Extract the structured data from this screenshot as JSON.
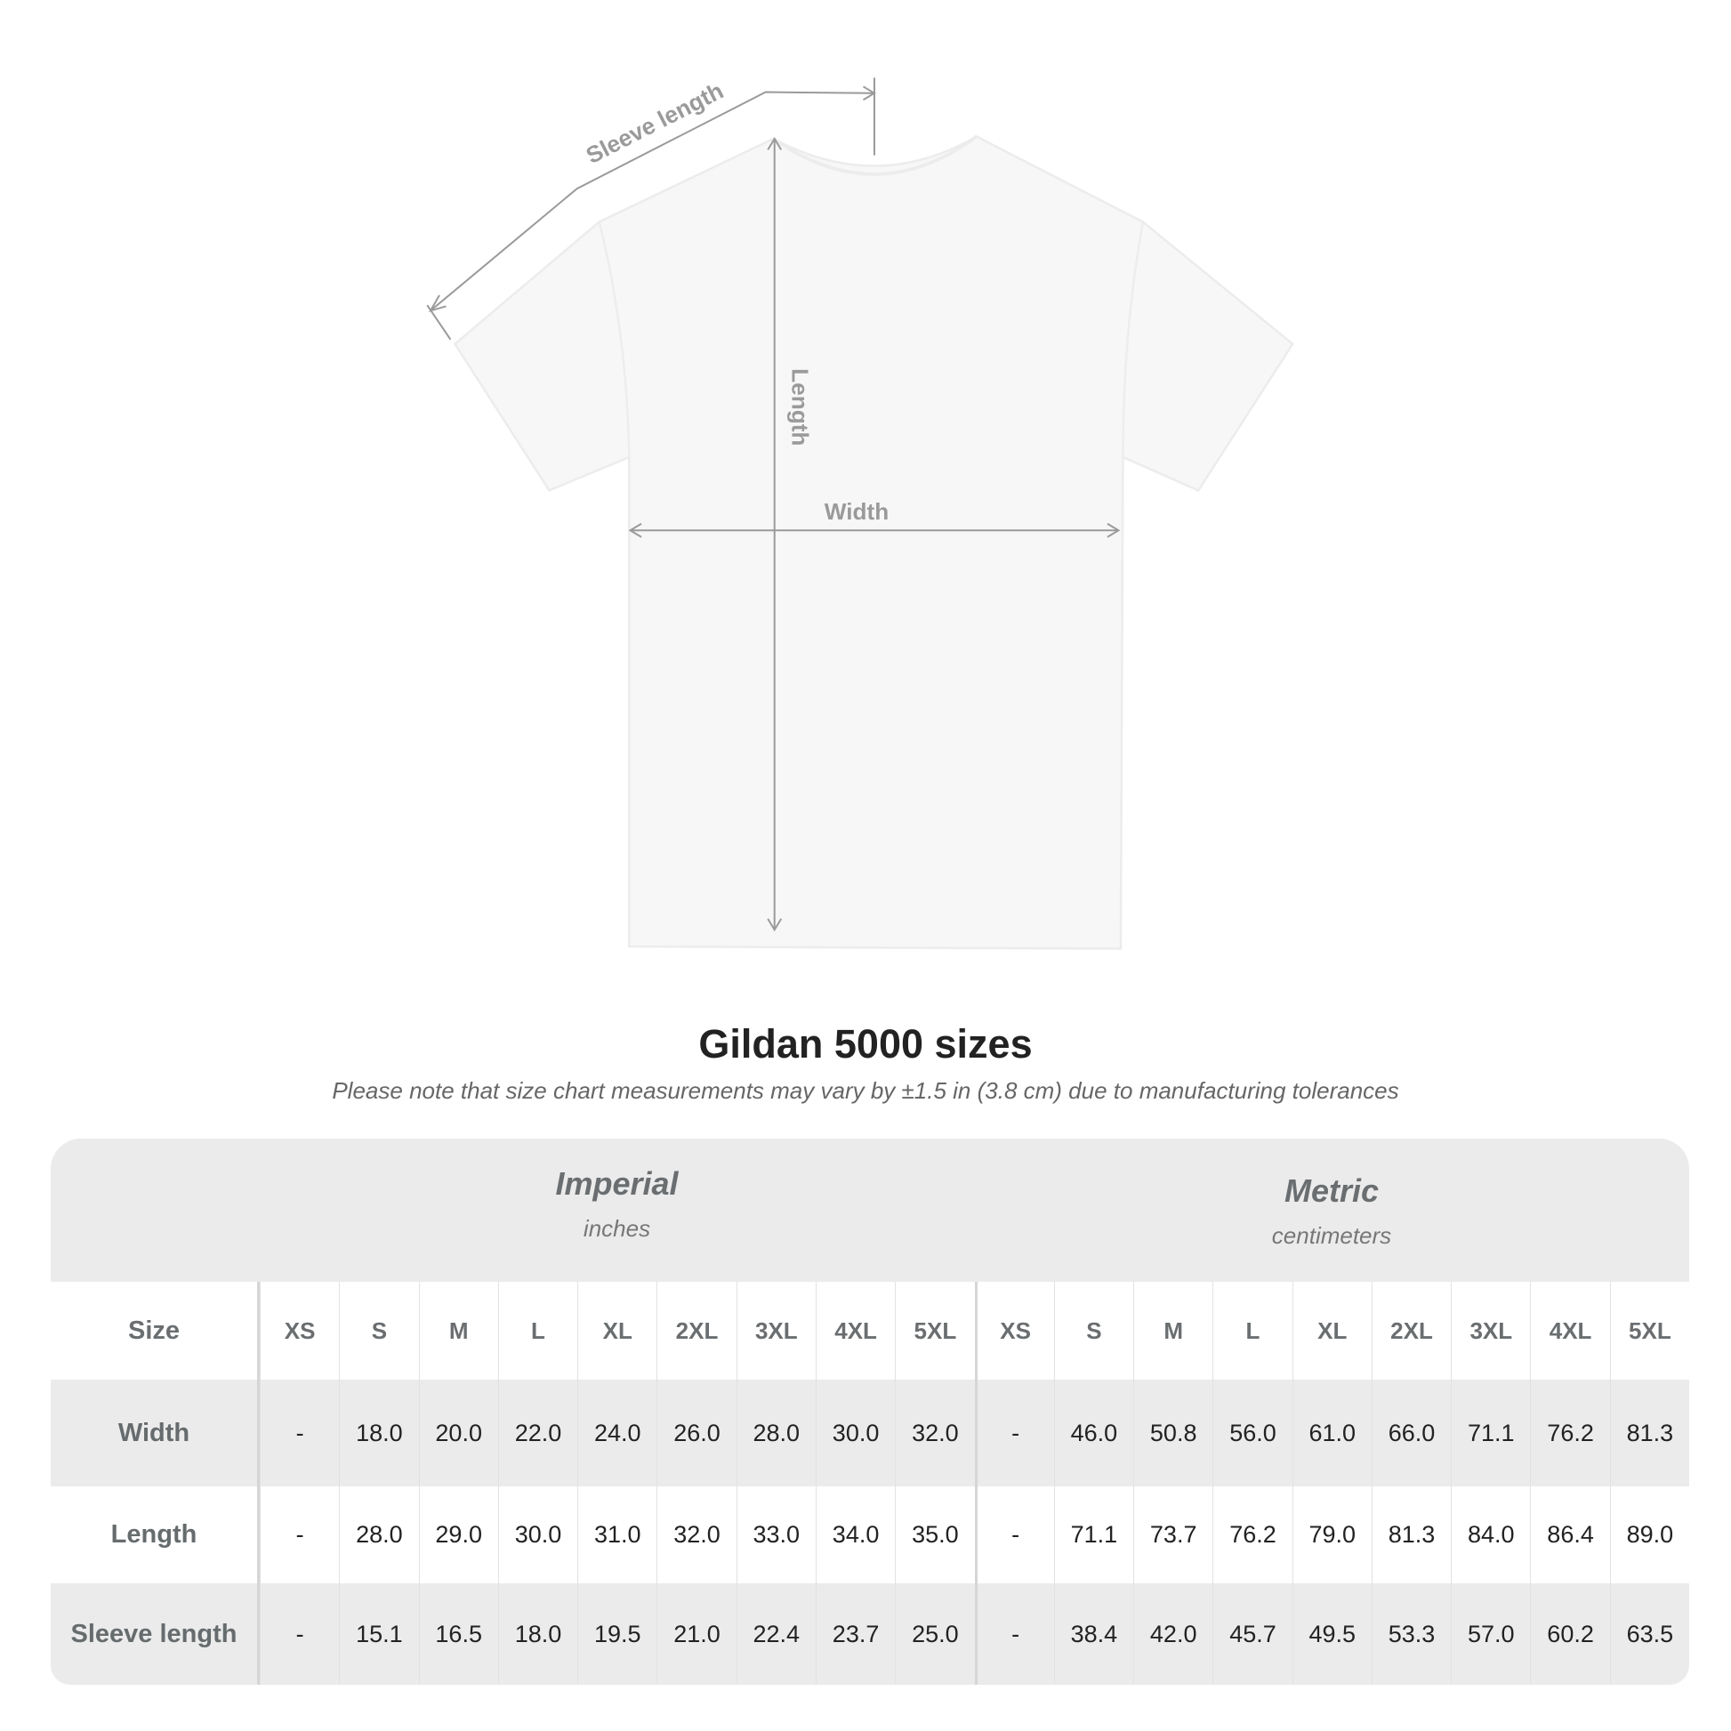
{
  "diagram": {
    "labels": {
      "sleeve": "Sleeve length",
      "length": "Length",
      "width": "Width"
    },
    "colors": {
      "shirt": "#f7f7f7",
      "measure_line": "#9a9a9a",
      "label": "#9a9a9a"
    }
  },
  "title": "Gildan 5000 sizes",
  "subtitle": "Please note that size chart measurements may vary by ±1.5 in (3.8 cm) due to manufacturing tolerances",
  "table": {
    "imperial": {
      "name": "Imperial",
      "unit": "inches"
    },
    "metric": {
      "name": "Metric",
      "unit": "centimeters"
    },
    "size_label": "Size",
    "sizes": [
      "XS",
      "S",
      "M",
      "L",
      "XL",
      "2XL",
      "3XL",
      "4XL",
      "5XL",
      "XS",
      "S",
      "M",
      "L",
      "XL",
      "2XL",
      "3XL",
      "4XL",
      "5XL"
    ],
    "rows": [
      {
        "label": "Width",
        "values": [
          "-",
          "18.0",
          "20.0",
          "22.0",
          "24.0",
          "26.0",
          "28.0",
          "30.0",
          "32.0",
          "-",
          "46.0",
          "50.8",
          "56.0",
          "61.0",
          "66.0",
          "71.1",
          "76.2",
          "81.3"
        ]
      },
      {
        "label": "Length",
        "values": [
          "-",
          "28.0",
          "29.0",
          "30.0",
          "31.0",
          "32.0",
          "33.0",
          "34.0",
          "35.0",
          "-",
          "71.1",
          "73.7",
          "76.2",
          "79.0",
          "81.3",
          "84.0",
          "86.4",
          "89.0"
        ]
      },
      {
        "label": "Sleeve length",
        "values": [
          "-",
          "15.1",
          "16.5",
          "18.0",
          "19.5",
          "21.0",
          "22.4",
          "23.7",
          "25.0",
          "-",
          "38.4",
          "42.0",
          "45.7",
          "49.5",
          "53.3",
          "57.0",
          "60.2",
          "63.5"
        ]
      }
    ],
    "colors": {
      "header_bg": "#ebebeb",
      "stripe_bg": "#ebebeb",
      "label_text": "#666c6e",
      "value_text": "#222222"
    }
  }
}
